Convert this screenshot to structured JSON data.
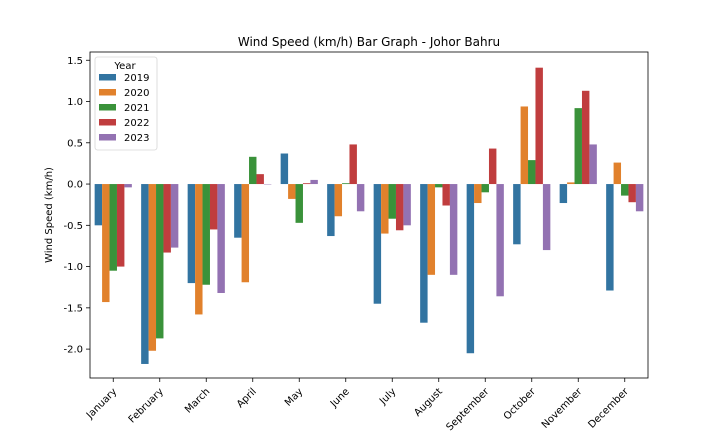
{
  "chart_data": {
    "type": "bar",
    "title": "Wind Speed (km/h) Bar Graph - Johor Bahru",
    "xlabel": "",
    "ylabel": "Wind Speed (km/h)",
    "ylim": [
      -2.35,
      1.6
    ],
    "yticks": [
      "1.5",
      "1.0",
      "0.5",
      "0.0",
      "-0.5",
      "-1.0",
      "-1.5",
      "-2.0"
    ],
    "ytick_values": [
      1.5,
      1.0,
      0.5,
      0.0,
      -0.5,
      -1.0,
      -1.5,
      -2.0
    ],
    "categories": [
      "January",
      "February",
      "March",
      "April",
      "May",
      "June",
      "July",
      "August",
      "September",
      "October",
      "November",
      "December"
    ],
    "legend": {
      "title": "Year",
      "position": "upper-left"
    },
    "series": [
      {
        "name": "2019",
        "color": "#3274a1",
        "values": [
          -0.5,
          -2.18,
          -1.2,
          -0.65,
          0.37,
          -0.63,
          -1.45,
          -1.68,
          -2.05,
          -0.73,
          -0.23,
          -1.29
        ]
      },
      {
        "name": "2020",
        "color": "#e1812c",
        "values": [
          -1.43,
          -2.02,
          -1.58,
          -1.19,
          -0.18,
          -0.39,
          -0.6,
          -1.1,
          -0.23,
          0.94,
          0.02,
          0.26
        ]
      },
      {
        "name": "2021",
        "color": "#3a923a",
        "values": [
          -1.05,
          -1.87,
          -1.22,
          0.33,
          -0.47,
          0.01,
          -0.42,
          -0.04,
          -0.1,
          0.29,
          0.92,
          -0.14
        ]
      },
      {
        "name": "2022",
        "color": "#c03d3e",
        "values": [
          -1.0,
          -0.83,
          -0.55,
          0.12,
          0.01,
          0.48,
          -0.56,
          -0.26,
          0.43,
          1.41,
          1.13,
          -0.22
        ]
      },
      {
        "name": "2023",
        "color": "#9372b2",
        "values": [
          -0.04,
          -0.77,
          -1.32,
          0.0,
          0.05,
          -0.33,
          -0.5,
          -1.1,
          -1.36,
          -0.8,
          0.48,
          -0.33
        ]
      }
    ]
  }
}
